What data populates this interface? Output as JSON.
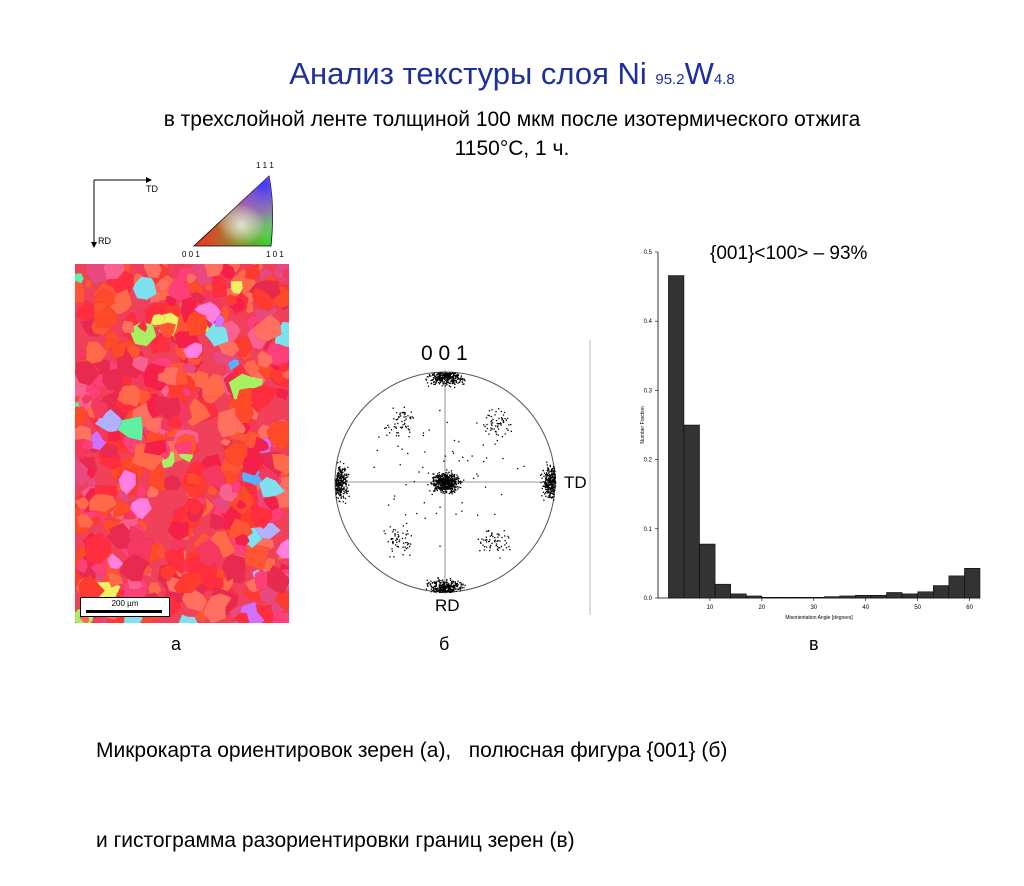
{
  "title": {
    "main": "Анализ текстуры слоя Ni ",
    "ni_sub": "95.2",
    "w": "W",
    "w_sub": "4.8"
  },
  "subtitle": {
    "line1": "в трехслойной ленте толщиной 100 мкм после изотермического отжига",
    "line2": "1150°С, 1 ч."
  },
  "axes_key": {
    "td": "TD",
    "rd": "RD"
  },
  "ipf_key": {
    "top": "1 1 1",
    "left": "0 0 1",
    "right": "1 0 1"
  },
  "micromap": {
    "scale_label": "200 µm",
    "panel_label": "а"
  },
  "pole_figure": {
    "top_label": "0 0 1",
    "right_label": "TD",
    "bottom_label": "RD",
    "panel_label": "б"
  },
  "histogram": {
    "annotation": "{001}<100> – 93%",
    "panel_label": "в"
  },
  "chart_data": {
    "type": "bar",
    "xlabel": "Misorientation Angle [degrees]",
    "ylabel": "Number Fraction",
    "xlim": [
      0,
      62
    ],
    "ylim": [
      0,
      0.5
    ],
    "xticks": [
      "10",
      "20",
      "30",
      "40",
      "50",
      "60"
    ],
    "yticks": [
      "0.0",
      "0.1",
      "0.2",
      "0.3",
      "0.4",
      "0.5"
    ],
    "bin_width": 3.0,
    "bins": [
      {
        "x0": 2,
        "value": 0.466
      },
      {
        "x0": 5,
        "value": 0.25
      },
      {
        "x0": 8,
        "value": 0.078
      },
      {
        "x0": 11,
        "value": 0.02
      },
      {
        "x0": 14,
        "value": 0.006
      },
      {
        "x0": 17,
        "value": 0.003
      },
      {
        "x0": 20,
        "value": 0.001
      },
      {
        "x0": 23,
        "value": 0.001
      },
      {
        "x0": 26,
        "value": 0.001
      },
      {
        "x0": 29,
        "value": 0.001
      },
      {
        "x0": 32,
        "value": 0.002
      },
      {
        "x0": 35,
        "value": 0.003
      },
      {
        "x0": 38,
        "value": 0.004
      },
      {
        "x0": 41,
        "value": 0.004
      },
      {
        "x0": 44,
        "value": 0.008
      },
      {
        "x0": 47,
        "value": 0.006
      },
      {
        "x0": 50,
        "value": 0.009
      },
      {
        "x0": 53,
        "value": 0.018
      },
      {
        "x0": 56,
        "value": 0.032
      },
      {
        "x0": 59,
        "value": 0.043
      }
    ],
    "bar_color": "#333333",
    "grid": false
  },
  "caption": {
    "line1": "Микрокарта ориентировок зерен (а),   полюсная фигура {001} (б)",
    "line2": "и гистограмма разориентировки границ зерен (в)"
  }
}
